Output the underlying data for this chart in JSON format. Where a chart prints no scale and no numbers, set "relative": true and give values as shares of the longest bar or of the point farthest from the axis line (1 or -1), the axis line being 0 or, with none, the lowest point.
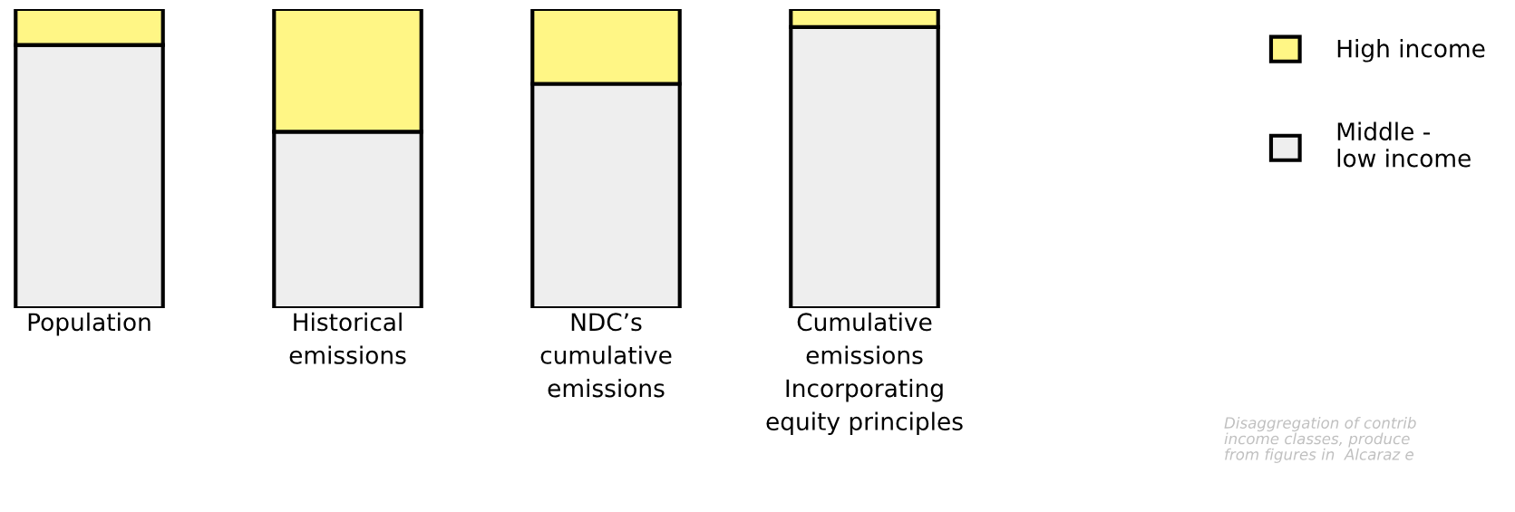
{
  "chart_data": {
    "type": "bar",
    "stacked": true,
    "relative": true,
    "categories": [
      "Population",
      "Historical\nemissions",
      "NDC’s\ncumulative\nemissions",
      "Cumulative\nemissions\nIncorporating\nequity principles"
    ],
    "series": [
      {
        "name": "Middle -\nlow income",
        "color": "#eeeeee",
        "values": [
          0.88,
          0.59,
          0.75,
          0.94
        ]
      },
      {
        "name": "High income",
        "color": "#fff685",
        "values": [
          0.12,
          0.41,
          0.25,
          0.06
        ]
      }
    ],
    "legend": "top right",
    "annotations": [
      "Disaggregation of contrib\nincome classes, produce\nfrom figures in  Alcaraz e"
    ]
  }
}
